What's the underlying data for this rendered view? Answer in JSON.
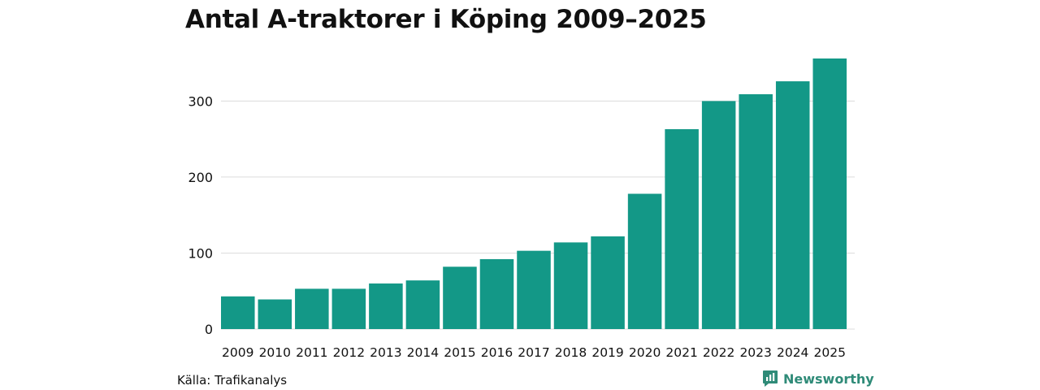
{
  "chart_data": {
    "type": "bar",
    "title": "Antal A-traktorer i Köping 2009–2025",
    "categories": [
      "2009",
      "2010",
      "2011",
      "2012",
      "2013",
      "2014",
      "2015",
      "2016",
      "2017",
      "2018",
      "2019",
      "2020",
      "2021",
      "2022",
      "2023",
      "2024",
      "2025"
    ],
    "values": [
      43,
      39,
      53,
      53,
      60,
      64,
      82,
      92,
      103,
      114,
      122,
      178,
      263,
      300,
      309,
      326,
      356
    ],
    "yticks": [
      0,
      100,
      200,
      300
    ],
    "ylim": [
      0,
      356
    ],
    "xlabel": "",
    "ylabel": "",
    "grid": true,
    "color": "#139887"
  },
  "footer": {
    "source": "Källa: Trafikanalys",
    "brand": "Newsworthy",
    "brand_color": "#2f8b78"
  }
}
